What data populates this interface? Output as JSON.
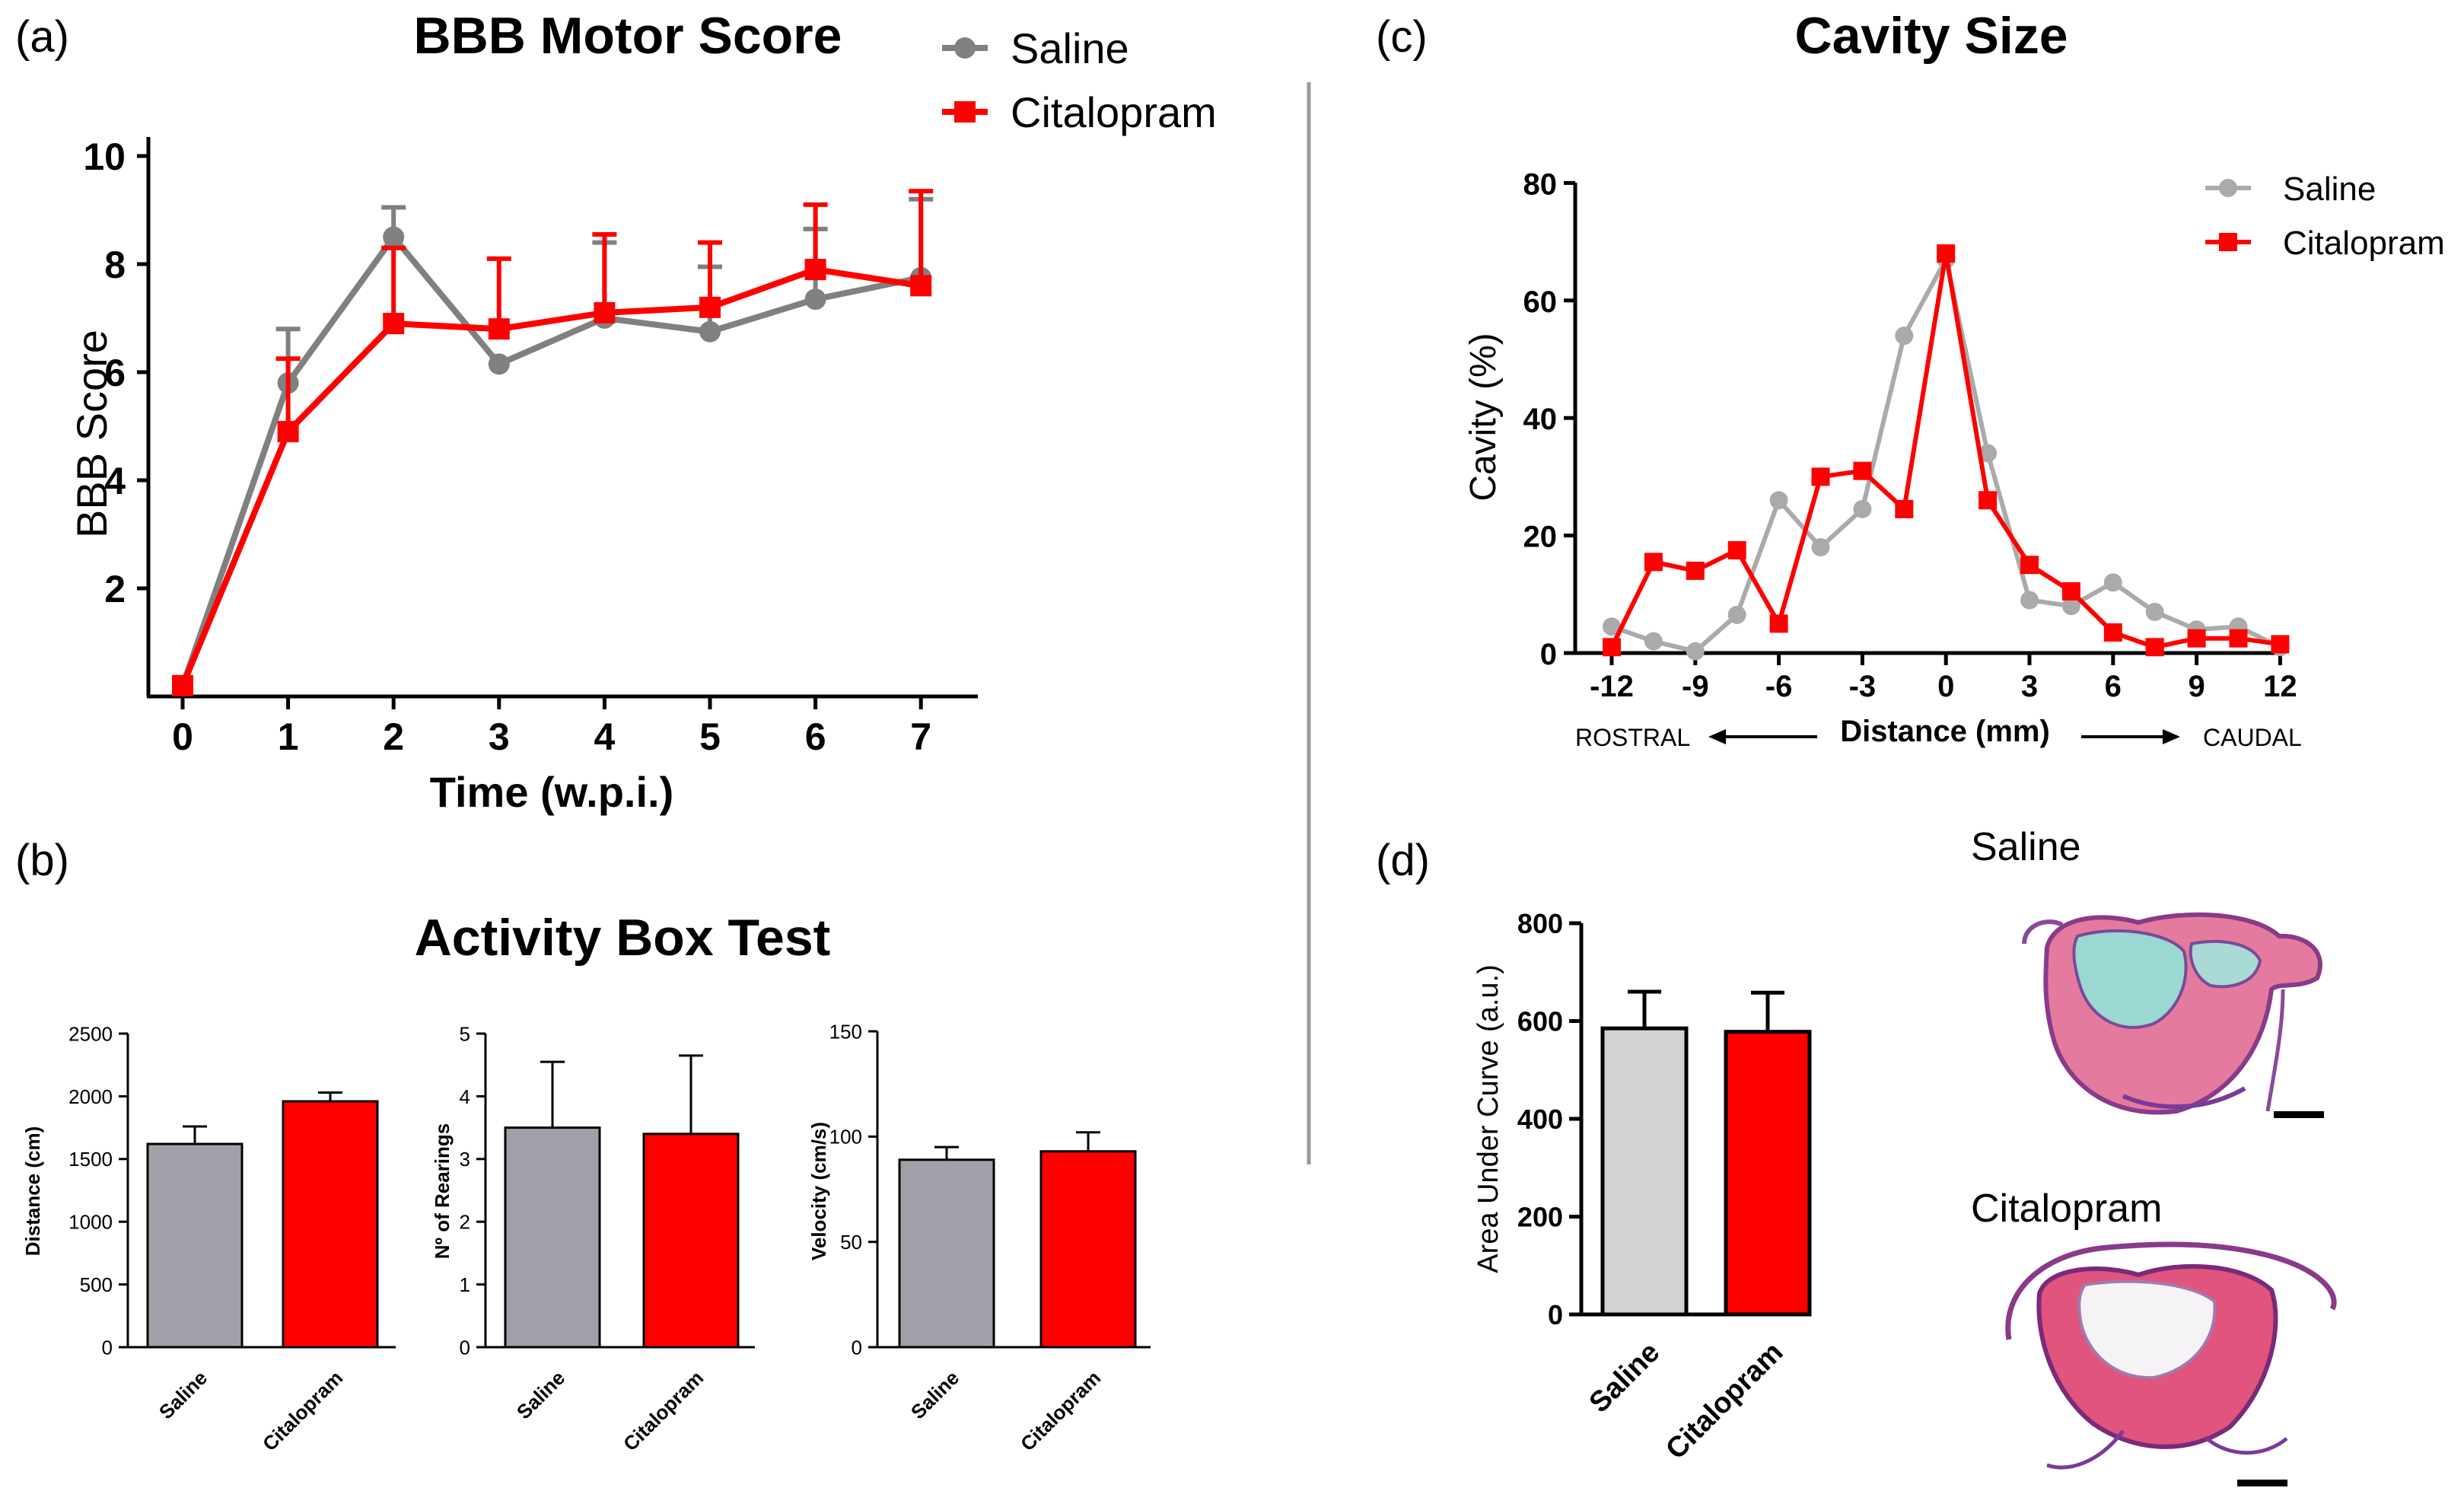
{
  "panel_labels": {
    "a": "(a)",
    "b": "(b)",
    "c": "(c)",
    "d": "(d)"
  },
  "colors": {
    "saline_line": "#808080",
    "citalopram": "#ff0000",
    "saline_bar_gray": "#a0a0a8",
    "saline_bar_light": "#d3d3d3",
    "saline_line_light": "#aaaaaa"
  },
  "chart_data": [
    {
      "id": "bbb",
      "type": "line",
      "title": "BBB Motor Score",
      "xlabel": "Time (w.p.i.)",
      "ylabel": "BBB Score",
      "x": [
        0,
        1,
        2,
        3,
        4,
        5,
        6,
        7
      ],
      "xticks": [
        "0",
        "1",
        "2",
        "3",
        "4",
        "5",
        "6",
        "7"
      ],
      "yticks": [
        "2",
        "4",
        "6",
        "8",
        "10"
      ],
      "ylim": [
        0,
        10
      ],
      "series": [
        {
          "name": "Saline",
          "values": [
            0.2,
            5.8,
            8.5,
            6.15,
            7.0,
            6.75,
            7.35,
            7.75
          ],
          "errors": [
            0,
            1.0,
            0.55,
            0,
            1.4,
            1.2,
            1.3,
            1.45
          ]
        },
        {
          "name": "Citalopram",
          "values": [
            0.2,
            4.9,
            6.9,
            6.8,
            7.1,
            7.2,
            7.9,
            7.6
          ],
          "errors": [
            0,
            1.35,
            1.4,
            1.3,
            1.45,
            1.2,
            1.2,
            1.75
          ]
        }
      ],
      "legend": [
        "Saline",
        "Citalopram"
      ]
    },
    {
      "id": "distance",
      "type": "bar",
      "title": "Activity Box Test",
      "ylabel": "Distance (cm)",
      "categories": [
        "Saline",
        "Citalopram"
      ],
      "values": [
        1620,
        1960
      ],
      "errors": [
        140,
        70
      ],
      "ylim": [
        0,
        2500
      ],
      "yticks": [
        "0",
        "500",
        "1000",
        "1500",
        "2000",
        "2500"
      ]
    },
    {
      "id": "rearings",
      "type": "bar",
      "ylabel": "Nº of Rearings",
      "categories": [
        "Saline",
        "Citalopram"
      ],
      "values": [
        3.5,
        3.4
      ],
      "errors": [
        1.05,
        1.25
      ],
      "ylim": [
        0,
        5
      ],
      "yticks": [
        "0",
        "1",
        "2",
        "3",
        "4",
        "5"
      ]
    },
    {
      "id": "velocity",
      "type": "bar",
      "ylabel": "Velocity (cm/s)",
      "categories": [
        "Saline",
        "Citalopram"
      ],
      "values": [
        89,
        93
      ],
      "errors": [
        6,
        9
      ],
      "ylim": [
        0,
        150
      ],
      "yticks": [
        "0",
        "50",
        "100",
        "150"
      ]
    },
    {
      "id": "cavity",
      "type": "line",
      "title": "Cavity Size",
      "xlabel": "Distance (mm)",
      "ylabel": "Cavity (%)",
      "x_left_note": "ROSTRAL",
      "x_right_note": "CAUDAL",
      "xlim": [
        -12,
        12
      ],
      "ylim": [
        0,
        80
      ],
      "xticks": [
        "-12",
        "-9",
        "-6",
        "-3",
        "0",
        "3",
        "6",
        "9",
        "12"
      ],
      "yticks": [
        "0",
        "20",
        "40",
        "60",
        "80"
      ],
      "x": [
        -12,
        -10.5,
        -9,
        -7.5,
        -6,
        -4.5,
        -3,
        -1.5,
        0,
        1.5,
        3,
        4.5,
        6,
        7.5,
        9,
        10.5,
        12
      ],
      "series": [
        {
          "name": "Saline",
          "values": [
            4.5,
            2,
            0.3,
            6.5,
            26,
            18,
            24.5,
            54,
            67,
            34,
            9,
            8,
            12,
            7,
            4,
            4.5,
            1
          ]
        },
        {
          "name": "Citalopram",
          "values": [
            1,
            15.5,
            14,
            17.5,
            5,
            30,
            31,
            24.5,
            68,
            26,
            15,
            10.5,
            3.5,
            1,
            2.5,
            2.5,
            1.5
          ]
        }
      ],
      "legend": [
        "Saline",
        "Citalopram"
      ]
    },
    {
      "id": "auc",
      "type": "bar",
      "ylabel": "Area Under Curve (a.u.)",
      "categories": [
        "Saline",
        "Citalopram"
      ],
      "values": [
        585,
        578
      ],
      "errors": [
        75,
        80
      ],
      "ylim": [
        0,
        800
      ],
      "yticks": [
        "0",
        "200",
        "400",
        "600",
        "800"
      ]
    }
  ],
  "histology": {
    "saline_label": "Saline",
    "citalopram_label": "Citalopram"
  }
}
